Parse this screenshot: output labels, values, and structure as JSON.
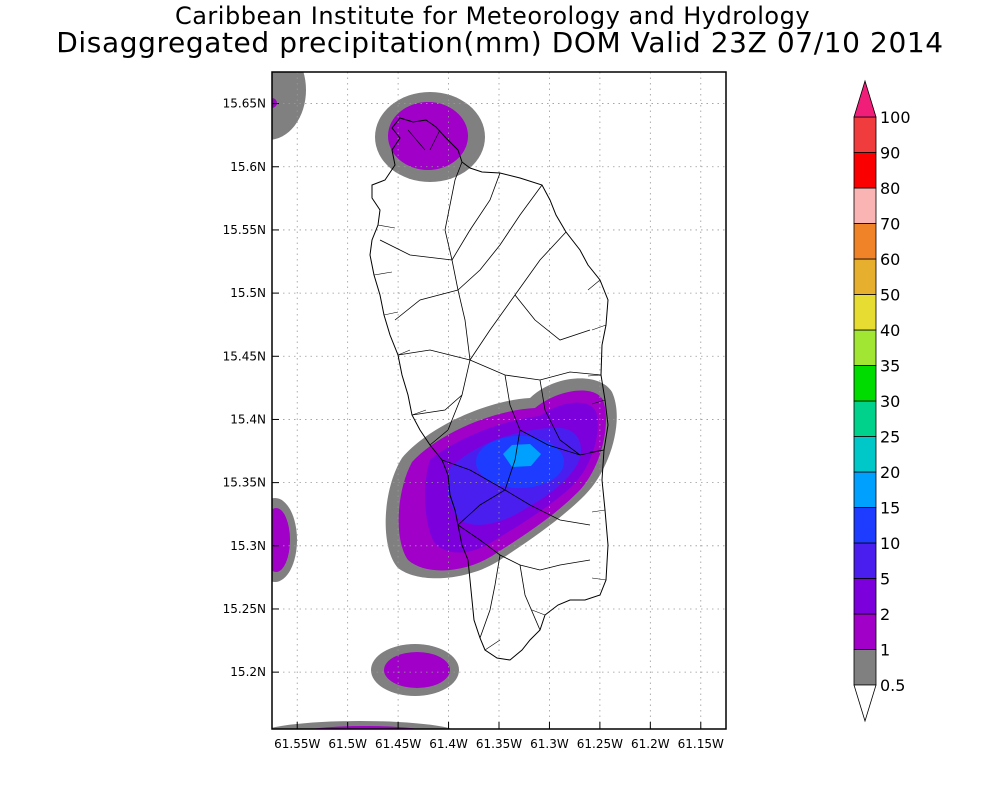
{
  "header": {
    "title": "Caribbean Institute for Meteorology and Hydrology",
    "subtitle": "Disaggregated precipitation(mm) DOM Valid 23Z 07/10 2014"
  },
  "map": {
    "lon_range": [
      -61.575,
      -61.125
    ],
    "lat_range": [
      15.155,
      15.675
    ],
    "x_ticks": [
      {
        "value": -61.55,
        "label": "61.55W"
      },
      {
        "value": -61.5,
        "label": "61.5W"
      },
      {
        "value": -61.45,
        "label": "61.45W"
      },
      {
        "value": -61.4,
        "label": "61.4W"
      },
      {
        "value": -61.35,
        "label": "61.35W"
      },
      {
        "value": -61.3,
        "label": "61.3W"
      },
      {
        "value": -61.25,
        "label": "61.25W"
      },
      {
        "value": -61.2,
        "label": "61.2W"
      },
      {
        "value": -61.15,
        "label": "61.15W"
      }
    ],
    "y_ticks": [
      {
        "value": 15.65,
        "label": "15.65N"
      },
      {
        "value": 15.6,
        "label": "15.6N"
      },
      {
        "value": 15.55,
        "label": "15.55N"
      },
      {
        "value": 15.5,
        "label": "15.5N"
      },
      {
        "value": 15.45,
        "label": "15.45N"
      },
      {
        "value": 15.4,
        "label": "15.4N"
      },
      {
        "value": 15.35,
        "label": "15.35N"
      },
      {
        "value": 15.3,
        "label": "15.3N"
      },
      {
        "value": 15.25,
        "label": "15.25N"
      },
      {
        "value": 15.2,
        "label": "15.2N"
      }
    ],
    "grid": true,
    "grid_style": "dotted"
  },
  "colorbar": {
    "levels": [
      {
        "label": "0.5",
        "color": "#808080"
      },
      {
        "label": "1",
        "color": "#a000c8"
      },
      {
        "label": "2",
        "color": "#7c00dc"
      },
      {
        "label": "5",
        "color": "#4b1ef0"
      },
      {
        "label": "10",
        "color": "#1e3cff"
      },
      {
        "label": "15",
        "color": "#00a0ff"
      },
      {
        "label": "20",
        "color": "#00c8c8"
      },
      {
        "label": "25",
        "color": "#00d28c"
      },
      {
        "label": "30",
        "color": "#00dc00"
      },
      {
        "label": "35",
        "color": "#a0e632"
      },
      {
        "label": "40",
        "color": "#e6dc32"
      },
      {
        "label": "50",
        "color": "#e6af2d"
      },
      {
        "label": "60",
        "color": "#f08228"
      },
      {
        "label": "70",
        "color": "#fab4b4"
      },
      {
        "label": "80",
        "color": "#fa0000"
      },
      {
        "label": "90",
        "color": "#f03c3c"
      },
      {
        "label": "100",
        "color": "#f01e78"
      }
    ],
    "under_color": "#ffffff",
    "over_color": "#f01e78"
  }
}
